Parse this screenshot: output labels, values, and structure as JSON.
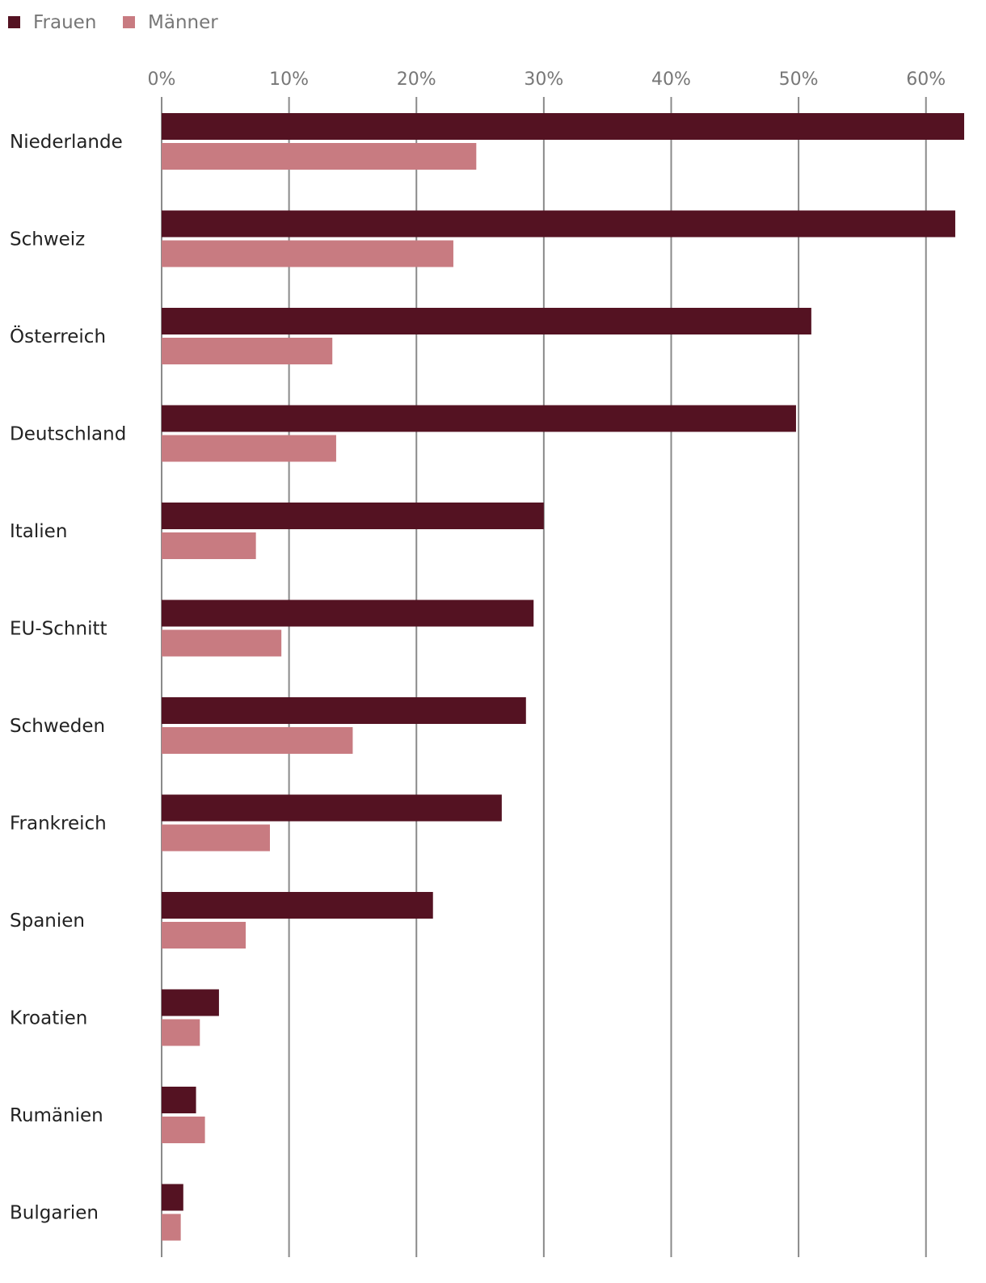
{
  "chart_data": {
    "type": "bar",
    "orientation": "horizontal",
    "title": "",
    "xlabel": "",
    "ylabel": "",
    "xlim": [
      0,
      63
    ],
    "tick_values": [
      0,
      10,
      20,
      30,
      40,
      50,
      60
    ],
    "tick_labels": [
      "0%",
      "10%",
      "20%",
      "30%",
      "40%",
      "50%",
      "60%"
    ],
    "grid": true,
    "legend_position": "top-left",
    "categories": [
      "Niederlande",
      "Schweiz",
      "Österreich",
      "Deutschland",
      "Italien",
      "EU-Schnitt",
      "Schweden",
      "Frankreich",
      "Spanien",
      "Kroatien",
      "Rumänien",
      "Bulgarien"
    ],
    "series": [
      {
        "name": "Frauen",
        "color": "#541222",
        "values": [
          63.0,
          62.3,
          51.0,
          49.8,
          30.0,
          29.2,
          28.6,
          26.7,
          21.3,
          4.5,
          2.7,
          1.7
        ]
      },
      {
        "name": "Männer",
        "color": "#C87B81",
        "values": [
          24.7,
          22.9,
          13.4,
          13.7,
          7.4,
          9.4,
          15.0,
          8.5,
          6.6,
          3.0,
          3.4,
          1.5
        ]
      }
    ]
  }
}
